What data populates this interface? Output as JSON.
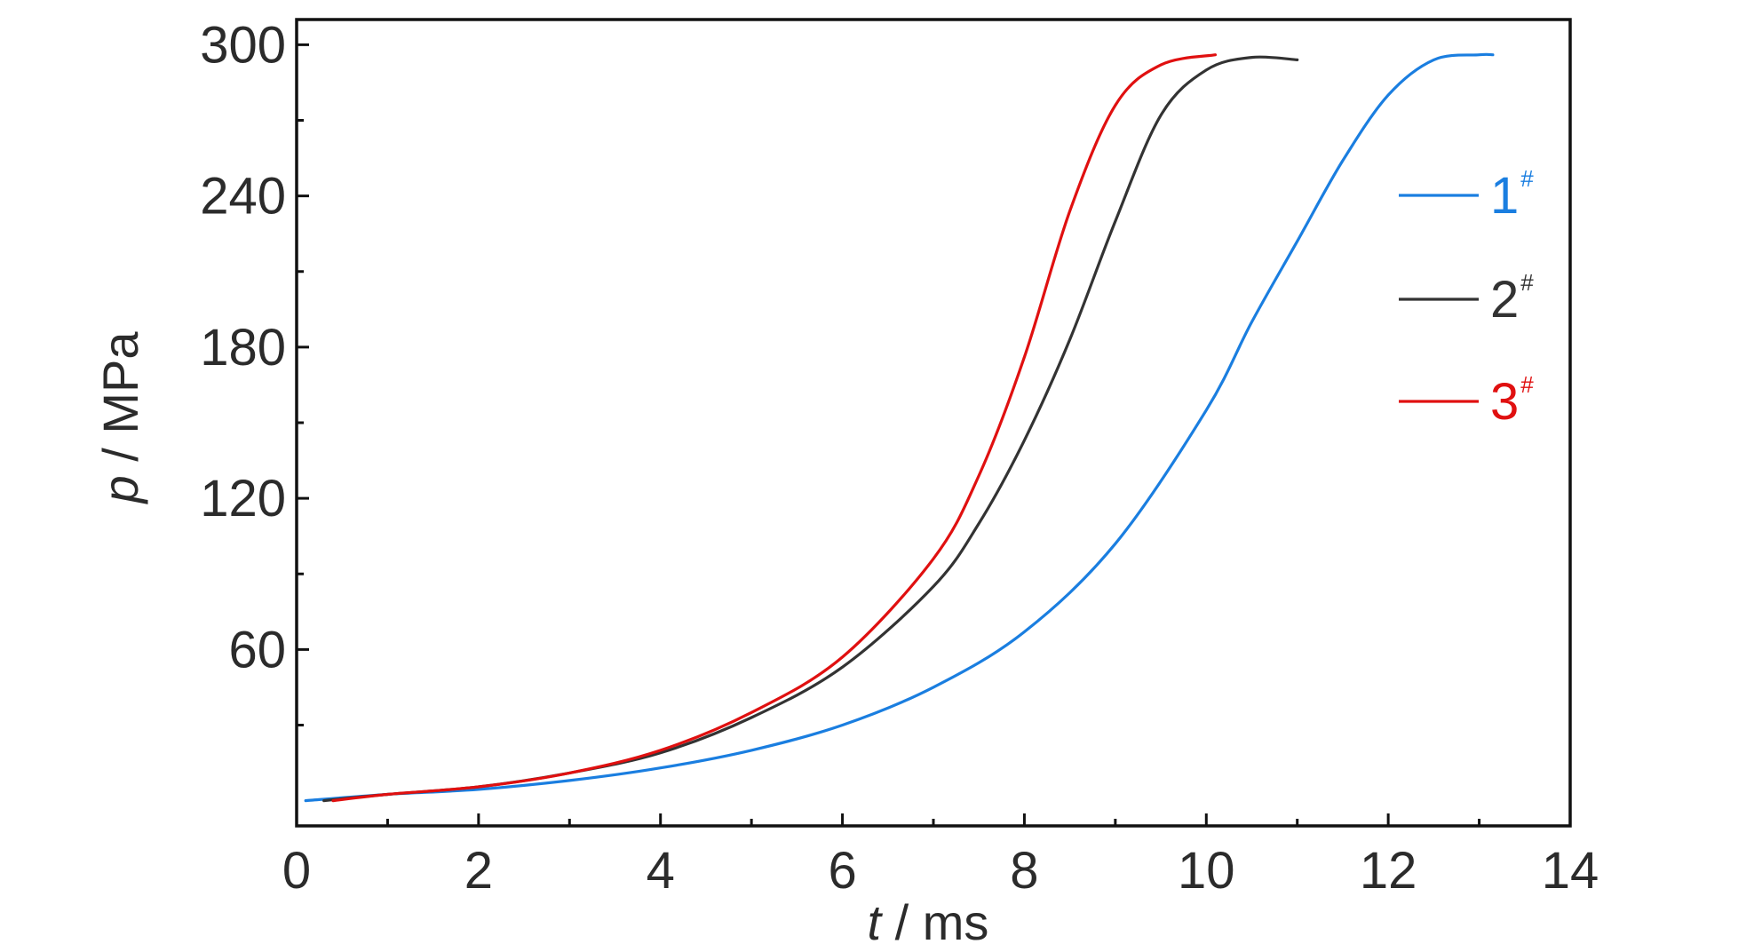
{
  "chart_data": {
    "type": "line",
    "xlabel": {
      "var": "t",
      "unit": " / ms"
    },
    "ylabel": {
      "var": "p",
      "unit": " / MPa"
    },
    "xlim": [
      0,
      14
    ],
    "ylim": [
      -10,
      310
    ],
    "x_ticks": [
      0,
      2,
      4,
      6,
      8,
      10,
      12,
      14
    ],
    "x_tick_labels": [
      "0",
      "2",
      "4",
      "6",
      "8",
      "10",
      "12",
      "14"
    ],
    "y_ticks": [
      60,
      120,
      180,
      240,
      300
    ],
    "y_tick_labels": [
      "60",
      "120",
      "180",
      "240",
      "300"
    ],
    "x_minor_ticks": [
      1,
      3,
      5,
      7,
      9,
      11,
      13
    ],
    "y_minor_ticks": [
      30,
      90,
      150,
      210,
      270
    ],
    "grid": false,
    "legend_position": "right",
    "series": [
      {
        "name": "1",
        "superscript": "#",
        "color": "#1a7ee0",
        "points": [
          [
            0.1,
            0
          ],
          [
            1,
            2.5
          ],
          [
            2,
            4.5
          ],
          [
            3,
            8
          ],
          [
            4,
            13
          ],
          [
            5,
            20
          ],
          [
            6,
            30
          ],
          [
            7,
            45
          ],
          [
            8,
            67
          ],
          [
            9,
            102
          ],
          [
            10,
            155
          ],
          [
            10.5,
            190
          ],
          [
            11,
            222
          ],
          [
            11.5,
            254
          ],
          [
            12,
            280
          ],
          [
            12.5,
            294
          ],
          [
            13,
            296
          ],
          [
            13.15,
            296
          ]
        ]
      },
      {
        "name": "2",
        "superscript": "#",
        "color": "#333333",
        "points": [
          [
            0.3,
            0
          ],
          [
            1,
            2.5
          ],
          [
            2,
            5.5
          ],
          [
            3,
            11
          ],
          [
            4,
            19
          ],
          [
            5,
            33
          ],
          [
            6,
            53
          ],
          [
            7,
            85
          ],
          [
            7.5,
            110
          ],
          [
            8,
            143
          ],
          [
            8.5,
            183
          ],
          [
            9,
            230
          ],
          [
            9.5,
            272
          ],
          [
            10,
            290
          ],
          [
            10.5,
            295
          ],
          [
            11,
            294
          ]
        ]
      },
      {
        "name": "3",
        "superscript": "#",
        "color": "#e01010",
        "points": [
          [
            0.4,
            0
          ],
          [
            1,
            2.5
          ],
          [
            2,
            5.5
          ],
          [
            3,
            11
          ],
          [
            4,
            20
          ],
          [
            5,
            35
          ],
          [
            6,
            57
          ],
          [
            7,
            96
          ],
          [
            7.5,
            129
          ],
          [
            8,
            176
          ],
          [
            8.5,
            234
          ],
          [
            9,
            276
          ],
          [
            9.5,
            292
          ],
          [
            10.1,
            296
          ]
        ]
      }
    ]
  }
}
